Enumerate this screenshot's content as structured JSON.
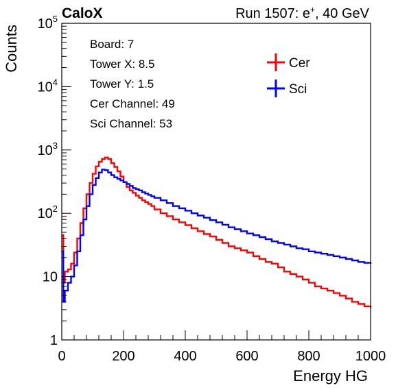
{
  "header": {
    "experiment": "CaloX",
    "run_label": "Run 1507: e",
    "run_sup": "+",
    "run_energy": ", 40 GeV"
  },
  "info_box": {
    "lines": [
      "Board: 7",
      "Tower X: 8.5",
      "Tower Y: 1.5",
      "Cer Channel: 49",
      "Sci Channel: 53"
    ]
  },
  "chart_data": {
    "type": "line",
    "style": "step histogram",
    "xlabel": "Energy HG",
    "ylabel": "Counts",
    "xlim": [
      0,
      1000
    ],
    "ylim": [
      1,
      100000
    ],
    "log_y": true,
    "grid": false,
    "legend_placement": "top-right",
    "x_ticks": [
      0,
      200,
      400,
      600,
      800,
      1000
    ],
    "y_ticks": [
      {
        "label": "1",
        "value": 1
      },
      {
        "label": "10",
        "value": 10
      },
      {
        "label": "10",
        "sup": "2",
        "value": 100
      },
      {
        "label": "10",
        "sup": "3",
        "value": 1000
      },
      {
        "label": "10",
        "sup": "4",
        "value": 10000
      },
      {
        "label": "10",
        "sup": "5",
        "value": 100000
      }
    ],
    "series": [
      {
        "name": "Cer",
        "color": "#ff0000",
        "x": [
          0,
          5,
          10,
          20,
          30,
          40,
          50,
          60,
          70,
          80,
          90,
          100,
          110,
          120,
          130,
          140,
          150,
          160,
          170,
          180,
          190,
          200,
          210,
          220,
          230,
          240,
          250,
          260,
          270,
          280,
          290,
          300,
          320,
          340,
          360,
          380,
          400,
          420,
          440,
          460,
          480,
          500,
          520,
          540,
          560,
          580,
          600,
          620,
          640,
          660,
          680,
          700,
          720,
          740,
          760,
          780,
          800,
          820,
          840,
          860,
          880,
          900,
          920,
          940,
          960,
          980,
          1000
        ],
        "y": [
          45,
          8,
          12,
          13,
          16,
          24,
          40,
          70,
          120,
          200,
          300,
          420,
          550,
          650,
          720,
          760,
          720,
          620,
          540,
          460,
          380,
          310,
          260,
          230,
          210,
          190,
          175,
          160,
          150,
          140,
          130,
          115,
          100,
          90,
          80,
          72,
          65,
          58,
          52,
          47,
          43,
          38,
          34,
          30,
          28,
          26,
          24,
          21,
          19,
          17,
          16,
          14,
          12,
          11,
          10,
          9,
          8,
          7,
          6.5,
          6,
          5.5,
          5,
          4.5,
          4,
          3.7,
          3.4,
          3.2
        ]
      },
      {
        "name": "Sci",
        "color": "#0000ff",
        "x": [
          0,
          5,
          10,
          20,
          30,
          40,
          50,
          60,
          70,
          80,
          90,
          100,
          110,
          120,
          130,
          140,
          150,
          160,
          170,
          180,
          190,
          200,
          210,
          220,
          230,
          240,
          250,
          260,
          270,
          280,
          290,
          300,
          320,
          340,
          360,
          380,
          400,
          420,
          440,
          460,
          480,
          500,
          520,
          540,
          560,
          580,
          600,
          620,
          640,
          660,
          680,
          700,
          720,
          740,
          760,
          780,
          800,
          820,
          840,
          860,
          880,
          900,
          920,
          940,
          960,
          980,
          1000
        ],
        "y": [
          25,
          4,
          6,
          8,
          10,
          15,
          25,
          45,
          80,
          130,
          200,
          280,
          360,
          440,
          490,
          480,
          440,
          400,
          370,
          350,
          330,
          310,
          290,
          270,
          250,
          240,
          230,
          215,
          205,
          195,
          185,
          175,
          160,
          145,
          130,
          120,
          110,
          100,
          92,
          85,
          78,
          72,
          66,
          60,
          56,
          52,
          48,
          45,
          42,
          39,
          36,
          34,
          32,
          30,
          28,
          27,
          25,
          24,
          23,
          22,
          21,
          20,
          19,
          18,
          17,
          16.5,
          16
        ]
      }
    ]
  }
}
